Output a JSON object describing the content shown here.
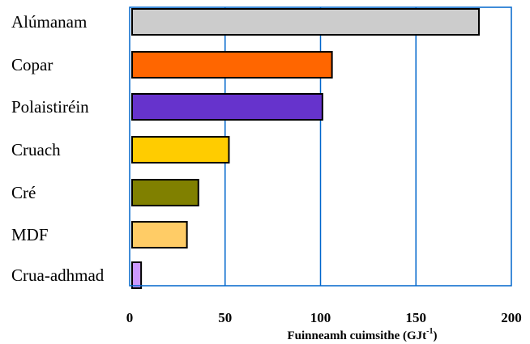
{
  "chart_data": {
    "type": "bar",
    "orientation": "horizontal",
    "categories": [
      "Alúmanam",
      "Copar",
      "Polaistiréin",
      "Cruach",
      "Cré",
      "MDF",
      "Crua-adhmad"
    ],
    "values": [
      183,
      106,
      101,
      52,
      36,
      30,
      6
    ],
    "colors": [
      "#cccccc",
      "#ff6600",
      "#6633cc",
      "#ffcc00",
      "#808000",
      "#ffcc66",
      "#cc99ff"
    ],
    "xlabel": "Fuinneamh cuimsithe (GJt",
    "xlabel_sup": "-1",
    "xlabel_end": ")",
    "xlim": [
      0,
      200
    ],
    "xticks": [
      "0",
      "50",
      "100",
      "150",
      "200"
    ],
    "xtick_values": [
      0,
      50,
      100,
      150,
      200
    ],
    "grid": true,
    "gridline_color": "#0066cc",
    "frame_color": "#0066cc",
    "legend": "none"
  }
}
